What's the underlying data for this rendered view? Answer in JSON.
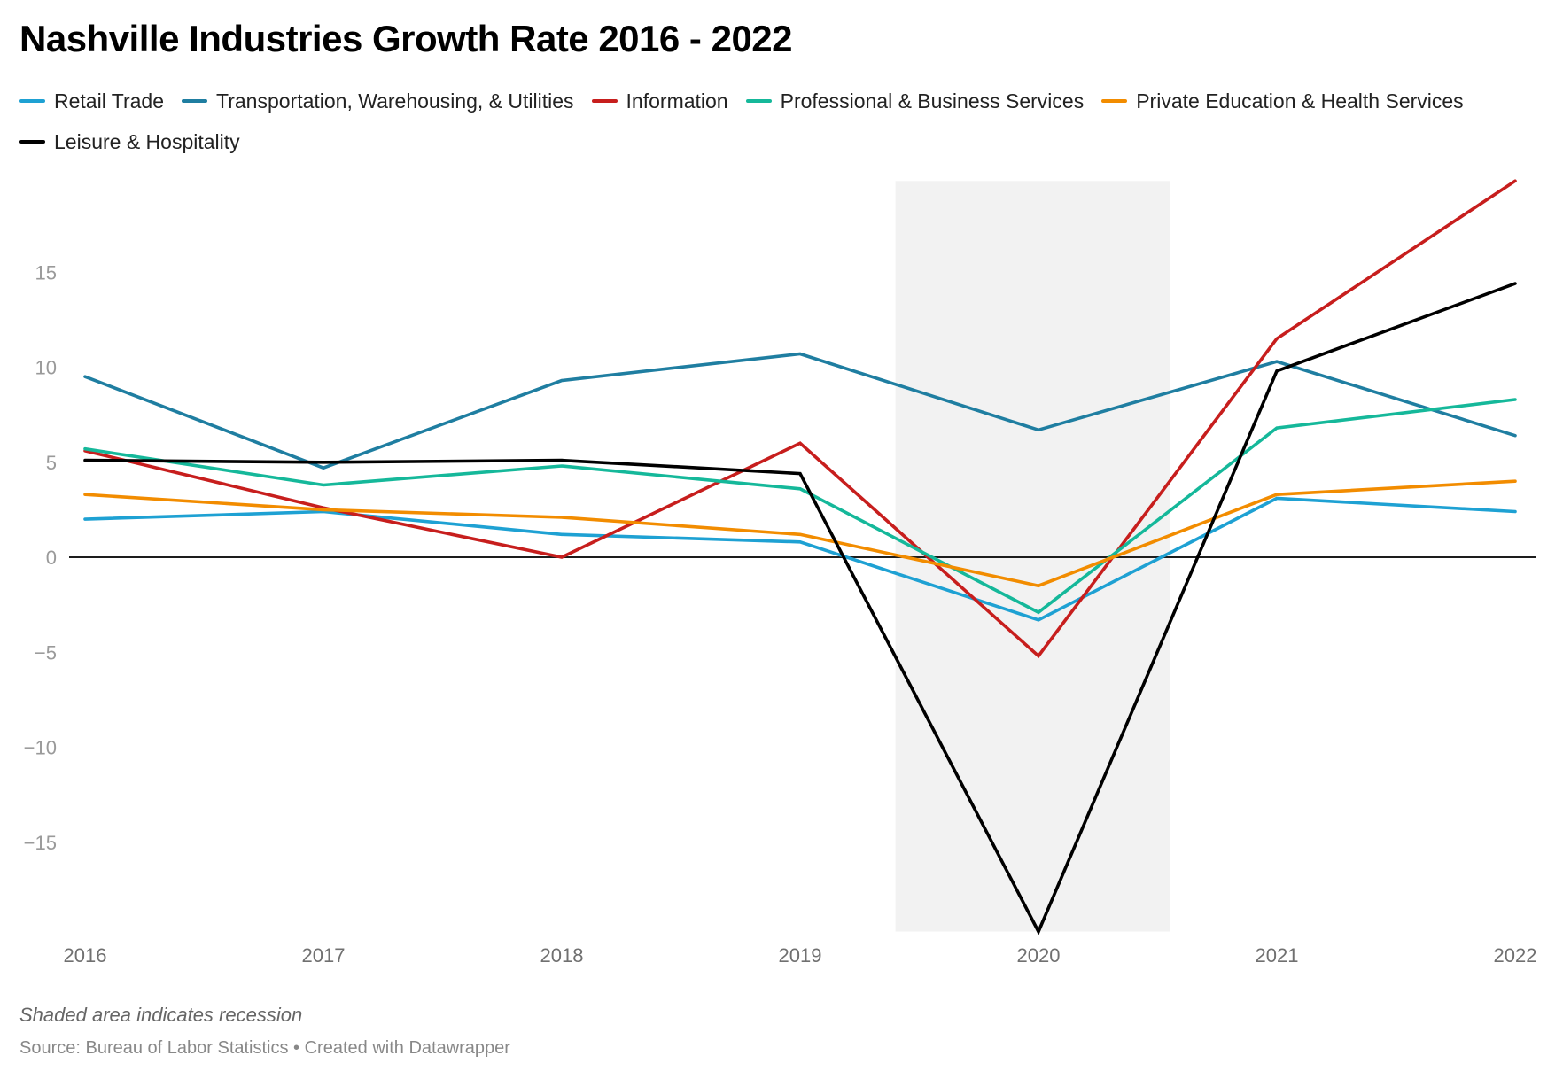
{
  "chart_data": {
    "type": "line",
    "title": "Nashville Industries Growth Rate 2016 - 2022",
    "xlabel": "",
    "ylabel": "",
    "x": [
      "2016",
      "2017",
      "2018",
      "2019",
      "2020",
      "2021",
      "2022"
    ],
    "y_ticks": [
      15,
      10,
      5,
      0,
      -5,
      -10,
      -15
    ],
    "y_tick_labels": [
      "15",
      "10",
      "5",
      "0",
      "−5",
      "−10",
      "−15"
    ],
    "ylim": [
      -19.7,
      19.8
    ],
    "grid": false,
    "zero_line": true,
    "legend_position": "top",
    "recession_shading": {
      "from": 2019.4,
      "to": 2020.55,
      "color": "#f2f2f2"
    },
    "series": [
      {
        "name": "Retail Trade",
        "color": "#1ea1d3",
        "values": [
          2.0,
          2.4,
          1.2,
          0.8,
          -3.3,
          3.1,
          2.4
        ]
      },
      {
        "name": "Transportation, Warehousing, & Utilities",
        "color": "#1f7ea1",
        "values": [
          9.5,
          4.7,
          9.3,
          10.7,
          6.7,
          10.3,
          6.4
        ]
      },
      {
        "name": "Information",
        "color": "#c71e1d",
        "values": [
          5.6,
          2.6,
          0.0,
          6.0,
          -5.2,
          11.5,
          19.8
        ]
      },
      {
        "name": "Professional & Business Services",
        "color": "#15b89a",
        "values": [
          5.7,
          3.8,
          4.8,
          3.6,
          -2.9,
          6.8,
          8.3
        ]
      },
      {
        "name": "Private Education & Health Services",
        "color": "#f28c00",
        "values": [
          3.3,
          2.5,
          2.1,
          1.2,
          -1.5,
          3.3,
          4.0
        ]
      },
      {
        "name": "Leisure & Hospitality",
        "color": "#000000",
        "values": [
          5.1,
          5.0,
          5.1,
          4.4,
          -19.7,
          9.8,
          14.4
        ]
      }
    ]
  },
  "notes": "Shaded area indicates recession",
  "source": "Source: Bureau of Labor Statistics • Created with Datawrapper"
}
